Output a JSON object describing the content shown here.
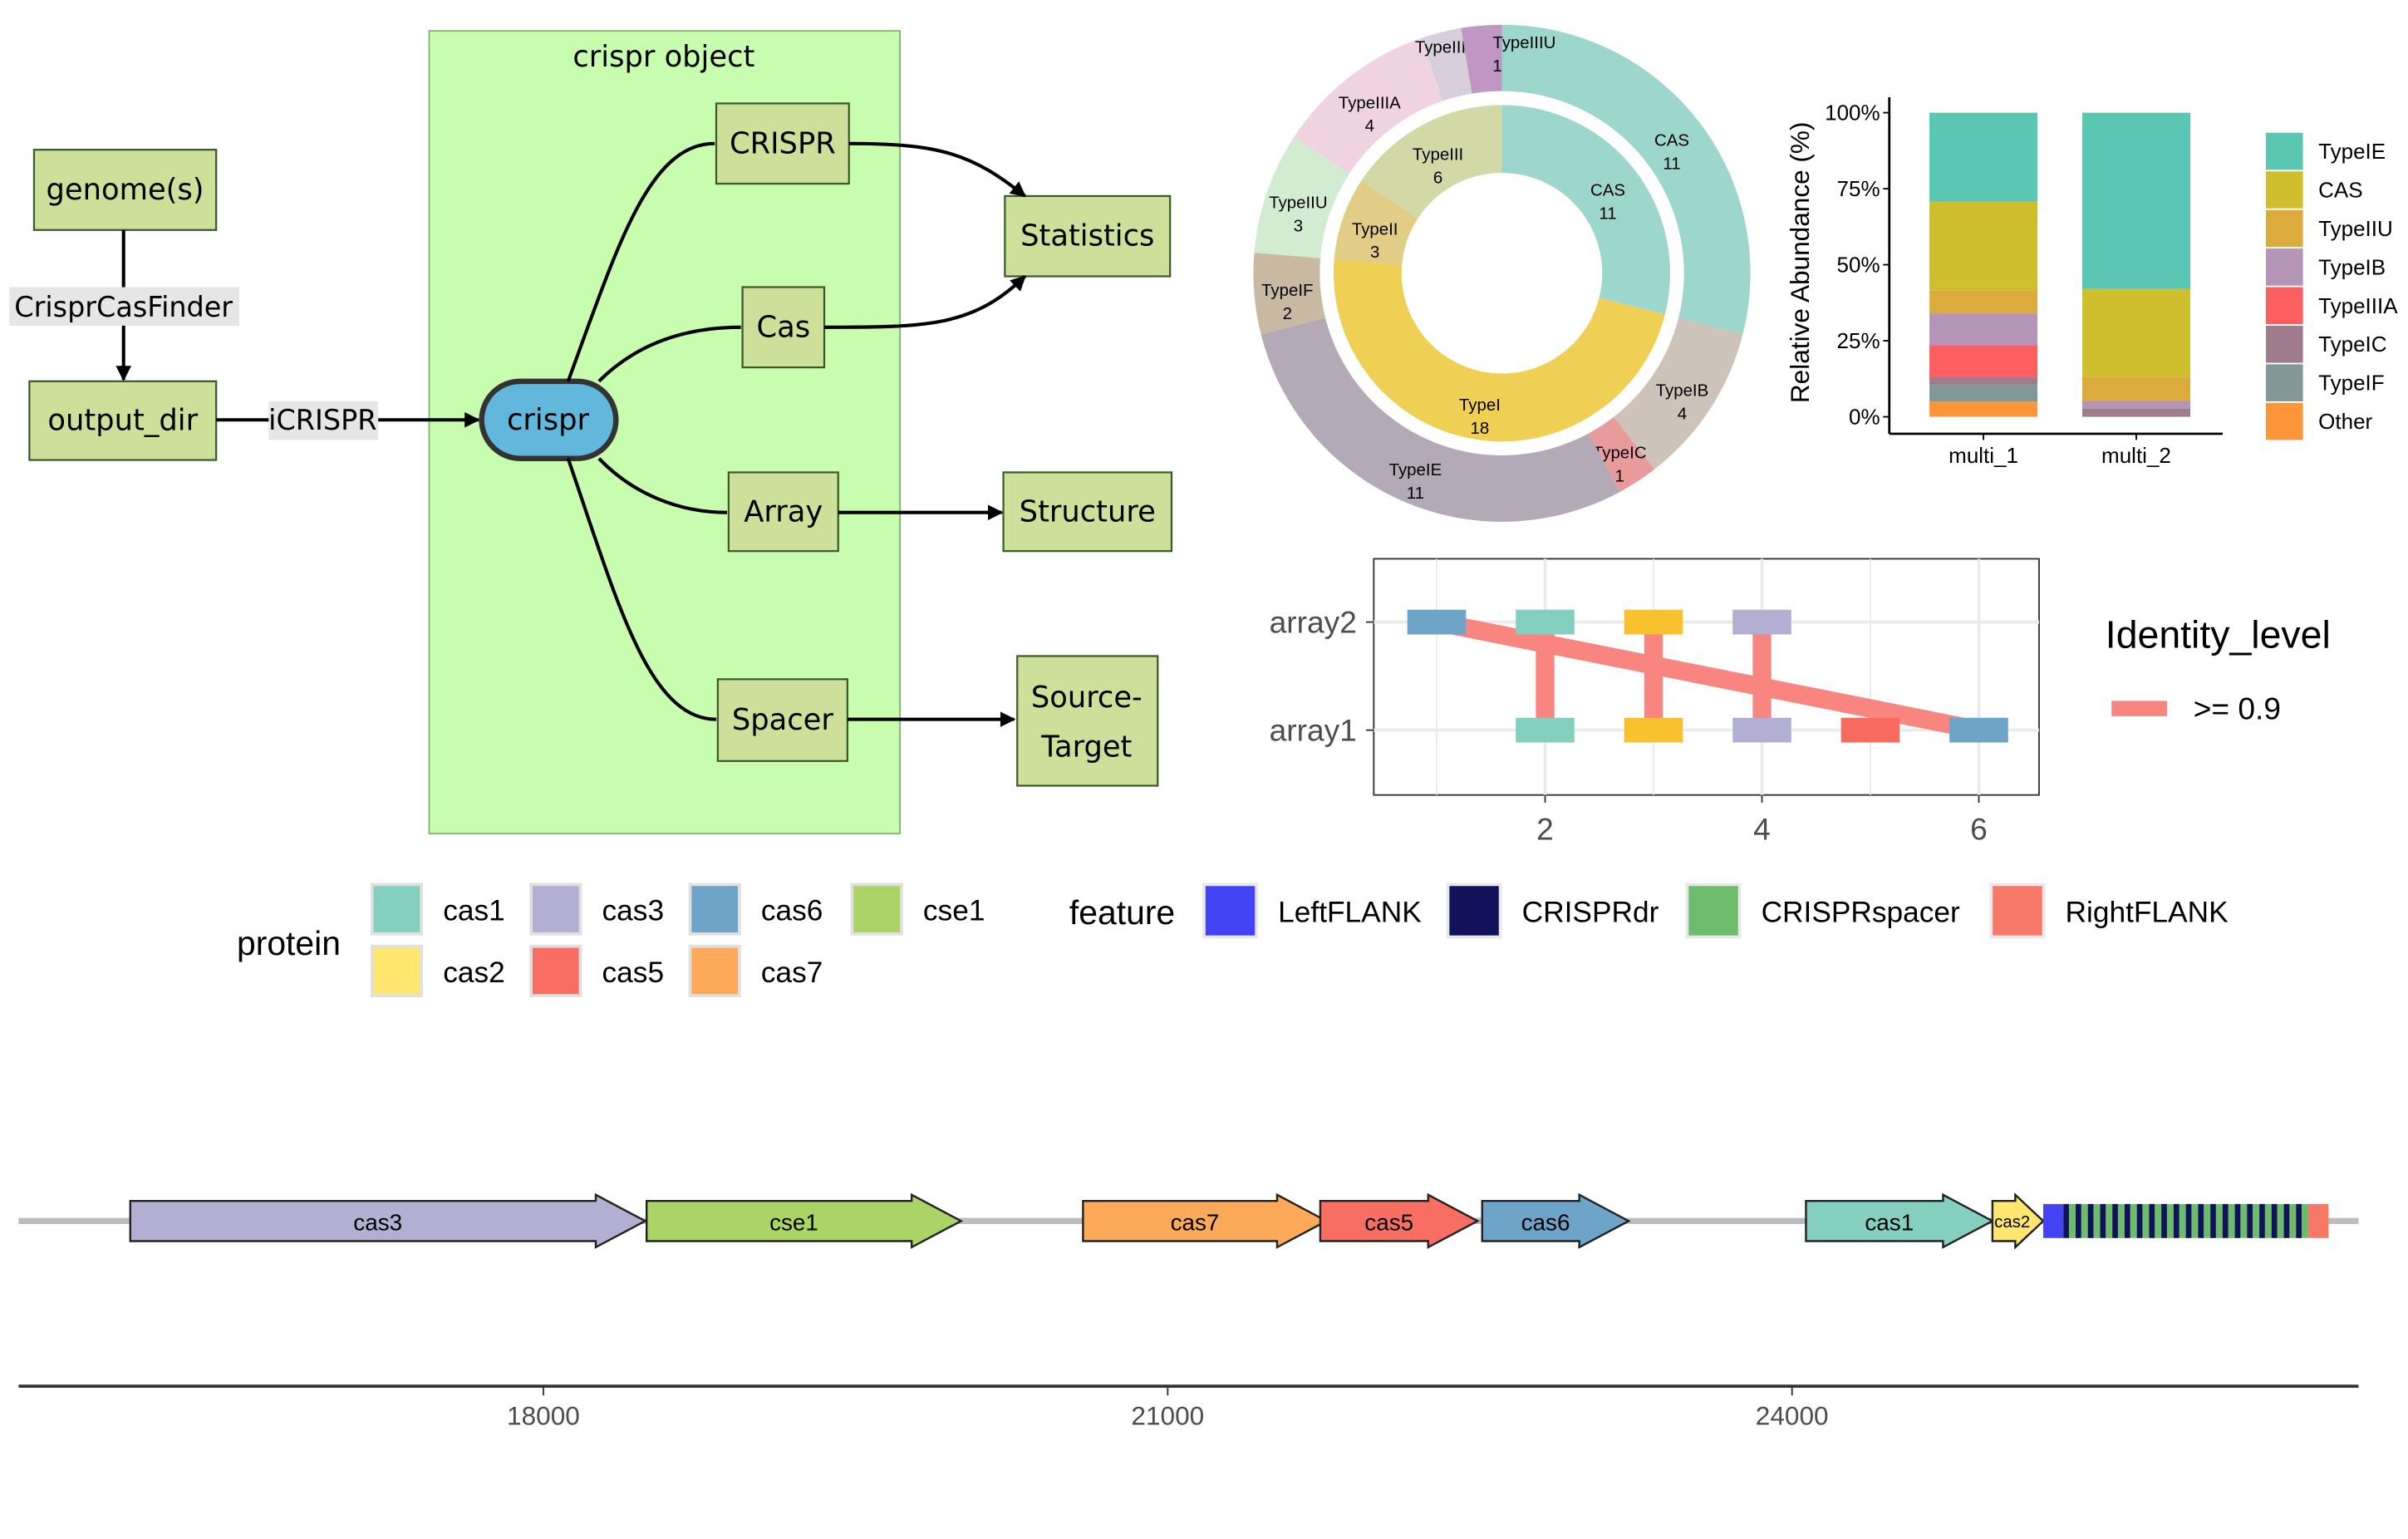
{
  "workflow": {
    "container_title": "crispr object",
    "nodes": {
      "genome": "genome(s)",
      "output_dir": "output_dir",
      "crispr": "crispr",
      "CRISPR": "CRISPR",
      "Cas": "Cas",
      "Array": "Array",
      "Spacer": "Spacer",
      "Statistics": "Statistics",
      "Structure": "Structure",
      "SourceTarget1": "Source-",
      "SourceTarget2": "Target"
    },
    "edge_labels": {
      "finder": "CrisprCasFinder",
      "icrispr": "iCRISPR"
    },
    "colors": {
      "box": "#cce09a",
      "container": "#c8fdb0",
      "crispr": "#62b8dc"
    }
  },
  "chart_data": [
    {
      "type": "pie",
      "title": "",
      "rings": [
        {
          "name": "inner",
          "slices": [
            {
              "label": "CAS",
              "value": 11,
              "color": "#9dd6cc"
            },
            {
              "label": "TypeI",
              "value": 18,
              "color": "#f0cf55"
            },
            {
              "label": "TypeII",
              "value": 3,
              "color": "#e1cd86"
            },
            {
              "label": "TypeIII",
              "value": 6,
              "color": "#d3d9a6"
            }
          ]
        },
        {
          "name": "outer",
          "slices": [
            {
              "label": "CAS",
              "value": 11,
              "color": "#9dd6cc"
            },
            {
              "label": "TypeIB",
              "value": 4,
              "color": "#cdc3b9"
            },
            {
              "label": "TypeIC",
              "value": 1,
              "color": "#e99b9b"
            },
            {
              "label": "TypeIE",
              "value": 11,
              "color": "#b4a9b7"
            },
            {
              "label": "TypeIF",
              "value": 2,
              "color": "#c9b9a3"
            },
            {
              "label": "TypeIIU",
              "value": 3,
              "color": "#d1ecd0"
            },
            {
              "label": "TypeIIIA",
              "value": 4,
              "color": "#f0d3e1"
            },
            {
              "label": "TypeIIIB",
              "value": 1,
              "color": "#d7cfdb"
            },
            {
              "label": "TypeIIIU",
              "value": 1,
              "color": "#c096c3"
            }
          ]
        }
      ]
    },
    {
      "type": "bar",
      "stacked": true,
      "categories": [
        "multi_1",
        "multi_2"
      ],
      "ylabel": "Relative Abundance (%)",
      "xlabel": "",
      "ylim": [
        0,
        100
      ],
      "yticks": [
        "0%",
        "25%",
        "50%",
        "75%",
        "100%"
      ],
      "legend_position": "right",
      "series": [
        {
          "name": "TypeIE",
          "color": "#5bc6b2",
          "values": [
            29.2,
            58
          ]
        },
        {
          "name": "CAS",
          "color": "#cfbf2e",
          "values": [
            29.3,
            28.8
          ]
        },
        {
          "name": "TypeIIU",
          "color": "#dbab3d",
          "values": [
            7.5,
            8
          ]
        },
        {
          "name": "TypeIB",
          "color": "#b494b7",
          "values": [
            10.5,
            2.5
          ]
        },
        {
          "name": "TypeIIIA",
          "color": "#fb5f60",
          "values": [
            10.5,
            0
          ]
        },
        {
          "name": "TypeIC",
          "color": "#9e7c8d",
          "values": [
            2.5,
            2.7
          ]
        },
        {
          "name": "TypeIF",
          "color": "#839797",
          "values": [
            5.5,
            0
          ]
        },
        {
          "name": "Other",
          "color": "#fd963b",
          "values": [
            5,
            0
          ]
        }
      ]
    },
    {
      "type": "scatter",
      "title": "",
      "xlim": [
        0.4,
        6.55
      ],
      "xticks": [
        2,
        4,
        6
      ],
      "yticks": [
        "array1",
        "array2"
      ],
      "legend_title": "Identity_level",
      "legend_label": ">= 0.9",
      "link_color": "#f8857f",
      "arrays": [
        {
          "name": "array2",
          "spacers": [
            {
              "x": 1,
              "color": "#6fa4c9"
            },
            {
              "x": 2,
              "color": "#85cfc1"
            },
            {
              "x": 3,
              "color": "#f7c22d"
            },
            {
              "x": 4,
              "color": "#b3afd3"
            }
          ]
        },
        {
          "name": "array1",
          "spacers": [
            {
              "x": 2,
              "color": "#85cfc1"
            },
            {
              "x": 3,
              "color": "#f7c22d"
            },
            {
              "x": 4,
              "color": "#b3afd3"
            },
            {
              "x": 5,
              "color": "#f86a5e"
            },
            {
              "x": 6,
              "color": "#6fa4c9"
            }
          ]
        }
      ],
      "links": [
        {
          "from": [
            1,
            "array2"
          ],
          "to": [
            6,
            "array1"
          ]
        },
        {
          "from": [
            2,
            "array2"
          ],
          "to": [
            2,
            "array1"
          ]
        },
        {
          "from": [
            3,
            "array2"
          ],
          "to": [
            3,
            "array1"
          ]
        },
        {
          "from": [
            4,
            "array2"
          ],
          "to": [
            4,
            "array1"
          ]
        }
      ]
    },
    {
      "type": "gene-map",
      "xlim": [
        15481,
        26711
      ],
      "xticks": [
        18000,
        21000,
        24000
      ],
      "xtick_labels": [
        "18000",
        "21000",
        "24000"
      ],
      "genes": [
        {
          "name": "cas3",
          "start": 16015,
          "end": 18489,
          "color": "#b3afd3"
        },
        {
          "name": "cse1",
          "start": 18496,
          "end": 20007,
          "color": "#aad566"
        },
        {
          "name": "cas7",
          "start": 20593,
          "end": 21763,
          "color": "#fca95a"
        },
        {
          "name": "cas5",
          "start": 21733,
          "end": 22489,
          "color": "#f96e62"
        },
        {
          "name": "cas6",
          "start": 22511,
          "end": 23215,
          "color": "#6fa4c9"
        },
        {
          "name": "cas1",
          "start": 24067,
          "end": 24963,
          "color": "#85cfc1"
        },
        {
          "name": "cas2",
          "start": 24963,
          "end": 25207,
          "color": "#ffe66e"
        }
      ],
      "array": {
        "leftflank": [
          25207,
          25304
        ],
        "repeats_region": [
          25304,
          26481
        ],
        "repeat_count": 20,
        "rightflank": [
          26481,
          26578
        ]
      }
    }
  ],
  "legends": {
    "protein": {
      "title": "protein",
      "items": [
        {
          "label": "cas1",
          "color": "#85cfc1"
        },
        {
          "label": "cas3",
          "color": "#b3afd3"
        },
        {
          "label": "cas6",
          "color": "#6fa4c9"
        },
        {
          "label": "cse1",
          "color": "#aad566"
        },
        {
          "label": "cas2",
          "color": "#ffe66e"
        },
        {
          "label": "cas5",
          "color": "#f96e62"
        },
        {
          "label": "cas7",
          "color": "#fca95a"
        }
      ]
    },
    "feature": {
      "title": "feature",
      "items": [
        {
          "label": "LeftFLANK",
          "color": "#4343f4"
        },
        {
          "label": "CRISPRdr",
          "color": "#12125a"
        },
        {
          "label": "CRISPRspacer",
          "color": "#6dbb6d"
        },
        {
          "label": "RightFLANK",
          "color": "#f87868"
        }
      ]
    }
  }
}
